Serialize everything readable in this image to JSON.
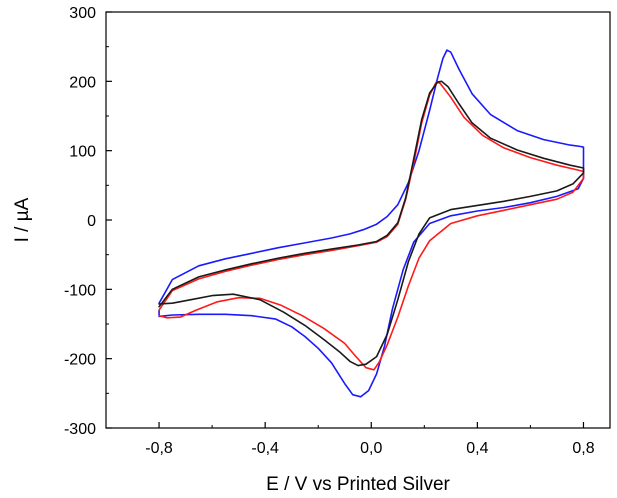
{
  "chart_data": {
    "type": "line",
    "title": "",
    "xlabel": "E / V vs Printed Silver",
    "ylabel": "I / µA",
    "xlim": [
      -1.0,
      0.9
    ],
    "ylim": [
      -300,
      300
    ],
    "x_ticks": [
      -0.8,
      -0.4,
      0.0,
      0.4,
      0.8
    ],
    "x_tick_labels": [
      "-0,8",
      "-0,4",
      "0,0",
      "0,4",
      "0,8"
    ],
    "y_ticks": [
      -300,
      -200,
      -100,
      0,
      100,
      200,
      300
    ],
    "y_tick_labels": [
      "-300",
      "-200",
      "-100",
      "0",
      "100",
      "200",
      "300"
    ],
    "grid": false,
    "legend": "none",
    "series": [
      {
        "color": "#1a1aff",
        "points": [
          [
            -0.8,
            -120
          ],
          [
            -0.75,
            -86
          ],
          [
            -0.65,
            -66
          ],
          [
            -0.55,
            -56
          ],
          [
            -0.45,
            -48
          ],
          [
            -0.35,
            -40
          ],
          [
            -0.25,
            -33
          ],
          [
            -0.15,
            -26
          ],
          [
            -0.08,
            -20
          ],
          [
            -0.03,
            -14
          ],
          [
            0.02,
            -6
          ],
          [
            0.06,
            5
          ],
          [
            0.1,
            22
          ],
          [
            0.14,
            54
          ],
          [
            0.18,
            100
          ],
          [
            0.22,
            158
          ],
          [
            0.25,
            205
          ],
          [
            0.27,
            233
          ],
          [
            0.285,
            245
          ],
          [
            0.3,
            242
          ],
          [
            0.33,
            218
          ],
          [
            0.38,
            182
          ],
          [
            0.45,
            152
          ],
          [
            0.55,
            129
          ],
          [
            0.65,
            116
          ],
          [
            0.75,
            108
          ],
          [
            0.79,
            106
          ],
          [
            0.8,
            105
          ],
          [
            0.8,
            60
          ],
          [
            0.78,
            45
          ],
          [
            0.7,
            34
          ],
          [
            0.6,
            25
          ],
          [
            0.5,
            18
          ],
          [
            0.4,
            13
          ],
          [
            0.3,
            6
          ],
          [
            0.22,
            -5
          ],
          [
            0.16,
            -32
          ],
          [
            0.12,
            -72
          ],
          [
            0.08,
            -128
          ],
          [
            0.05,
            -182
          ],
          [
            0.02,
            -222
          ],
          [
            -0.01,
            -246
          ],
          [
            -0.04,
            -255
          ],
          [
            -0.07,
            -252
          ],
          [
            -0.1,
            -236
          ],
          [
            -0.15,
            -206
          ],
          [
            -0.2,
            -185
          ],
          [
            -0.25,
            -168
          ],
          [
            -0.3,
            -154
          ],
          [
            -0.36,
            -143
          ],
          [
            -0.45,
            -138
          ],
          [
            -0.55,
            -136
          ],
          [
            -0.65,
            -136
          ],
          [
            -0.75,
            -137
          ],
          [
            -0.8,
            -139
          ],
          [
            -0.8,
            -130
          ]
        ]
      },
      {
        "color": "#ff1a1a",
        "points": [
          [
            -0.8,
            -130
          ],
          [
            -0.75,
            -102
          ],
          [
            -0.65,
            -85
          ],
          [
            -0.55,
            -74
          ],
          [
            -0.45,
            -65
          ],
          [
            -0.35,
            -57
          ],
          [
            -0.25,
            -50
          ],
          [
            -0.15,
            -44
          ],
          [
            -0.05,
            -37
          ],
          [
            0.02,
            -32
          ],
          [
            0.06,
            -24
          ],
          [
            0.1,
            -6
          ],
          [
            0.13,
            30
          ],
          [
            0.16,
            82
          ],
          [
            0.19,
            140
          ],
          [
            0.22,
            180
          ],
          [
            0.245,
            199
          ],
          [
            0.26,
            197
          ],
          [
            0.3,
            177
          ],
          [
            0.35,
            148
          ],
          [
            0.42,
            122
          ],
          [
            0.5,
            104
          ],
          [
            0.6,
            90
          ],
          [
            0.7,
            79
          ],
          [
            0.78,
            72
          ],
          [
            0.8,
            70
          ],
          [
            0.8,
            60
          ],
          [
            0.76,
            40
          ],
          [
            0.7,
            30
          ],
          [
            0.6,
            22
          ],
          [
            0.5,
            14
          ],
          [
            0.4,
            6
          ],
          [
            0.3,
            -5
          ],
          [
            0.22,
            -30
          ],
          [
            0.18,
            -55
          ],
          [
            0.14,
            -95
          ],
          [
            0.1,
            -140
          ],
          [
            0.06,
            -180
          ],
          [
            0.03,
            -205
          ],
          [
            0.01,
            -216
          ],
          [
            -0.02,
            -213
          ],
          [
            -0.06,
            -196
          ],
          [
            -0.1,
            -178
          ],
          [
            -0.18,
            -156
          ],
          [
            -0.26,
            -138
          ],
          [
            -0.34,
            -123
          ],
          [
            -0.42,
            -113
          ],
          [
            -0.5,
            -112
          ],
          [
            -0.58,
            -118
          ],
          [
            -0.66,
            -130
          ],
          [
            -0.72,
            -140
          ],
          [
            -0.77,
            -141
          ],
          [
            -0.8,
            -138
          ]
        ]
      },
      {
        "color": "#1a1a1a",
        "points": [
          [
            -0.8,
            -125
          ],
          [
            -0.75,
            -100
          ],
          [
            -0.65,
            -82
          ],
          [
            -0.55,
            -72
          ],
          [
            -0.45,
            -63
          ],
          [
            -0.35,
            -55
          ],
          [
            -0.25,
            -48
          ],
          [
            -0.15,
            -42
          ],
          [
            -0.05,
            -36
          ],
          [
            0.02,
            -31
          ],
          [
            0.06,
            -22
          ],
          [
            0.1,
            -4
          ],
          [
            0.13,
            32
          ],
          [
            0.16,
            88
          ],
          [
            0.19,
            145
          ],
          [
            0.22,
            183
          ],
          [
            0.25,
            199
          ],
          [
            0.265,
            200
          ],
          [
            0.29,
            192
          ],
          [
            0.33,
            168
          ],
          [
            0.38,
            140
          ],
          [
            0.45,
            118
          ],
          [
            0.55,
            101
          ],
          [
            0.65,
            89
          ],
          [
            0.75,
            79
          ],
          [
            0.8,
            75
          ],
          [
            0.8,
            68
          ],
          [
            0.76,
            52
          ],
          [
            0.7,
            42
          ],
          [
            0.6,
            34
          ],
          [
            0.5,
            27
          ],
          [
            0.4,
            21
          ],
          [
            0.3,
            15
          ],
          [
            0.22,
            3
          ],
          [
            0.18,
            -20
          ],
          [
            0.14,
            -60
          ],
          [
            0.1,
            -115
          ],
          [
            0.06,
            -165
          ],
          [
            0.02,
            -197
          ],
          [
            -0.02,
            -208
          ],
          [
            -0.05,
            -210
          ],
          [
            -0.08,
            -204
          ],
          [
            -0.12,
            -190
          ],
          [
            -0.18,
            -172
          ],
          [
            -0.25,
            -152
          ],
          [
            -0.33,
            -133
          ],
          [
            -0.42,
            -115
          ],
          [
            -0.52,
            -107
          ],
          [
            -0.6,
            -109
          ],
          [
            -0.68,
            -115
          ],
          [
            -0.75,
            -120
          ],
          [
            -0.8,
            -121
          ]
        ]
      }
    ]
  }
}
